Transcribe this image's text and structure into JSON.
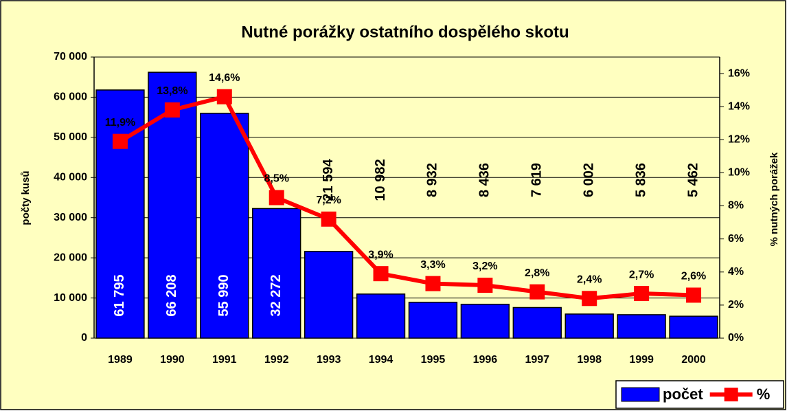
{
  "chart_data": {
    "type": "bar",
    "title": "Nutné porážky ostatního dospělého skotu",
    "y_label": "počty kusů",
    "y2_label": "% nutných porážek",
    "categories": [
      "1989",
      "1990",
      "1991",
      "1992",
      "1993",
      "1994",
      "1995",
      "1996",
      "1997",
      "1998",
      "1999",
      "2000"
    ],
    "series": [
      {
        "name": "počet",
        "type": "bar",
        "color": "#0000ff",
        "values": [
          61795,
          66208,
          55990,
          32272,
          21594,
          10982,
          8932,
          8436,
          7619,
          6002,
          5836,
          5462
        ],
        "value_labels": [
          "61 795",
          "66 208",
          "55 990",
          "32 272",
          "21 594",
          "10 982",
          "8 932",
          "8 436",
          "7 619",
          "6 002",
          "5 836",
          "5 462"
        ]
      },
      {
        "name": "%",
        "type": "line",
        "color": "#ff0000",
        "axis": "y2",
        "values": [
          11.9,
          13.8,
          14.6,
          8.5,
          7.2,
          3.9,
          3.3,
          3.2,
          2.8,
          2.4,
          2.7,
          2.6
        ],
        "value_labels": [
          "11,9%",
          "13,8%",
          "14,6%",
          "8,5%",
          "7,2%",
          "3,9%",
          "3,3%",
          "3,2%",
          "2,8%",
          "2,4%",
          "2,7%",
          "2,6%"
        ]
      }
    ],
    "ylim": [
      0,
      70000
    ],
    "yticks": [
      0,
      {
        "value": 10000,
        "label": "10 000"
      },
      {
        "value": 20000,
        "label": "20 000"
      },
      {
        "value": 30000,
        "label": "30 000"
      },
      {
        "value": 40000,
        "label": "40 000"
      },
      {
        "value": 50000,
        "label": "50 000"
      },
      {
        "value": 60000,
        "label": "60 000"
      },
      {
        "value": 70000,
        "label": "70 000"
      }
    ],
    "y2lim": [
      0,
      17
    ],
    "y2ticks": [
      {
        "value": 0,
        "label": "0%"
      },
      {
        "value": 2,
        "label": "2%"
      },
      {
        "value": 4,
        "label": "4%"
      },
      {
        "value": 6,
        "label": "6%"
      },
      {
        "value": 8,
        "label": "8%"
      },
      {
        "value": 10,
        "label": "10%"
      },
      {
        "value": 12,
        "label": "12%"
      },
      {
        "value": 14,
        "label": "14%"
      },
      {
        "value": 16,
        "label": "16%"
      }
    ],
    "grid": true,
    "legend": "bottom-right"
  }
}
